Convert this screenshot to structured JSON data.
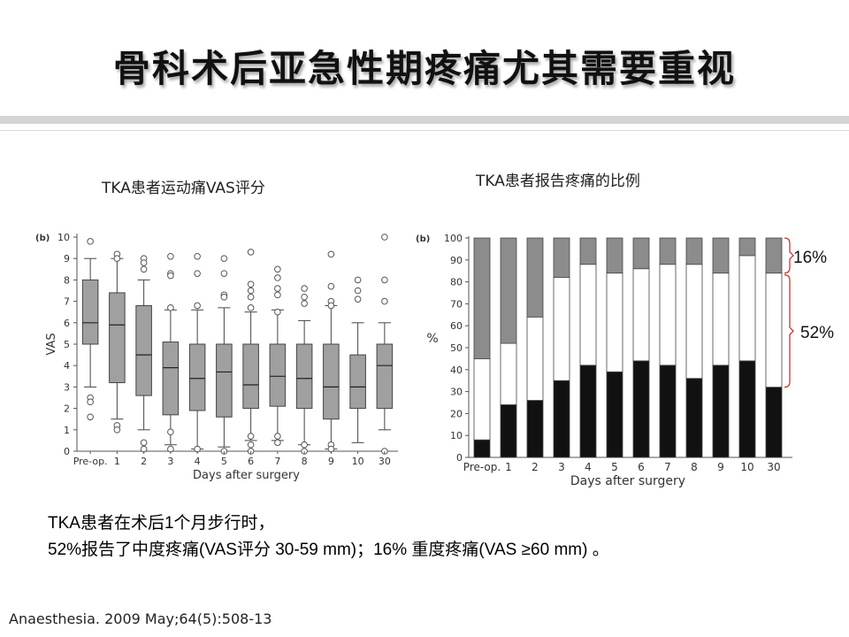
{
  "slide": {
    "title": "骨科术后亚急性期疼痛尤其需要重视",
    "body_line1": "TKA患者在术后1个月步行时，",
    "body_line2": "52%报告了中度疼痛(VAS评分 30-59 mm)；16% 重度疼痛(VAS ≥60 mm) 。",
    "citation": "Anaesthesia. 2009 May;64(5):508-13"
  },
  "chart_data": [
    {
      "type": "box",
      "title": "TKA患者运动痛VAS评分",
      "panel_label": "(b)",
      "xlabel": "Days after surgery",
      "ylabel": "VAS",
      "ylim": [
        0,
        10
      ],
      "yticks": [
        0,
        1,
        2,
        3,
        4,
        5,
        6,
        7,
        8,
        9,
        10
      ],
      "categories": [
        "Pre-op.",
        "1",
        "2",
        "3",
        "4",
        "5",
        "6",
        "7",
        "8",
        "9",
        "10",
        "30"
      ],
      "boxes": [
        {
          "min": 3.0,
          "q1": 5.0,
          "median": 6.0,
          "q3": 8.0,
          "max": 9.0,
          "outliers": [
            9.8,
            2.5,
            2.3,
            1.6
          ]
        },
        {
          "min": 1.5,
          "q1": 3.2,
          "median": 5.9,
          "q3": 7.4,
          "max": 9.0,
          "outliers": [
            9.2,
            9.0,
            1.2,
            1.0
          ]
        },
        {
          "min": 1.0,
          "q1": 2.6,
          "median": 4.5,
          "q3": 6.8,
          "max": 8.0,
          "outliers": [
            9.0,
            8.8,
            8.5,
            0.4,
            0.1
          ]
        },
        {
          "min": 0.3,
          "q1": 1.7,
          "median": 3.9,
          "q3": 5.1,
          "max": 6.6,
          "outliers": [
            9.1,
            8.3,
            8.2,
            6.7,
            0.9,
            0.1
          ]
        },
        {
          "min": 0.1,
          "q1": 1.9,
          "median": 3.4,
          "q3": 5.0,
          "max": 6.6,
          "outliers": [
            9.1,
            8.3,
            6.8,
            0.1
          ]
        },
        {
          "min": 0.2,
          "q1": 1.6,
          "median": 3.7,
          "q3": 5.0,
          "max": 6.7,
          "outliers": [
            9.0,
            8.3,
            7.3,
            7.2,
            0.0
          ]
        },
        {
          "min": 0.5,
          "q1": 2.0,
          "median": 3.1,
          "q3": 5.0,
          "max": 6.5,
          "outliers": [
            9.3,
            7.8,
            7.5,
            7.2,
            6.7,
            0.7,
            0.3,
            0.0
          ]
        },
        {
          "min": 0.5,
          "q1": 2.1,
          "median": 3.5,
          "q3": 5.0,
          "max": 6.6,
          "outliers": [
            8.5,
            8.1,
            7.6,
            7.3,
            6.5,
            0.7,
            0.4
          ]
        },
        {
          "min": 0.3,
          "q1": 2.0,
          "median": 3.4,
          "q3": 5.0,
          "max": 6.1,
          "outliers": [
            7.6,
            7.2,
            6.9,
            0.3,
            0.0
          ]
        },
        {
          "min": 0.1,
          "q1": 1.5,
          "median": 3.0,
          "q3": 5.0,
          "max": 6.8,
          "outliers": [
            9.2,
            7.7,
            7.0,
            6.8,
            0.3,
            0.1
          ]
        },
        {
          "min": 0.4,
          "q1": 2.0,
          "median": 3.0,
          "q3": 4.5,
          "max": 6.0,
          "outliers": [
            8.0,
            7.5,
            7.1
          ]
        },
        {
          "min": 1.0,
          "q1": 2.0,
          "median": 4.0,
          "q3": 5.0,
          "max": 6.0,
          "outliers": [
            10.0,
            8.0,
            7.0,
            0.0
          ]
        }
      ],
      "colors": {
        "box": "#a0a0a0",
        "outline": "#444444"
      }
    },
    {
      "type": "bar",
      "stacked": true,
      "title": "TKA患者报告疼痛的比例",
      "panel_label": "(b)",
      "xlabel": "Days after surgery",
      "ylabel": "%",
      "ylim": [
        0,
        100
      ],
      "yticks": [
        0,
        10,
        20,
        30,
        40,
        50,
        60,
        70,
        80,
        90,
        100
      ],
      "categories": [
        "Pre-op.",
        "1",
        "2",
        "3",
        "4",
        "5",
        "6",
        "7",
        "8",
        "9",
        "10",
        "30"
      ],
      "series": [
        {
          "values": [
            8,
            24,
            26,
            35,
            42,
            39,
            44,
            42,
            36,
            42,
            44,
            32
          ],
          "color": "#111111"
        },
        {
          "values": [
            37,
            28,
            38,
            47,
            46,
            45,
            42,
            46,
            52,
            42,
            48,
            52
          ],
          "color": "#ffffff"
        },
        {
          "values": [
            55,
            48,
            36,
            18,
            12,
            16,
            14,
            12,
            12,
            16,
            8,
            16
          ],
          "color": "#8c8c8c"
        }
      ],
      "annotations": [
        {
          "text": "16%",
          "range": [
            84,
            100
          ]
        },
        {
          "text": "52%",
          "range": [
            32,
            84
          ]
        }
      ],
      "bracket_color": "#c0392b"
    }
  ]
}
